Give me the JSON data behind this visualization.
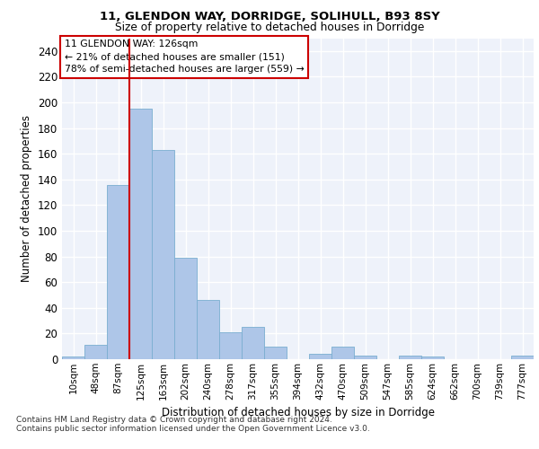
{
  "title1": "11, GLENDON WAY, DORRIDGE, SOLIHULL, B93 8SY",
  "title2": "Size of property relative to detached houses in Dorridge",
  "xlabel": "Distribution of detached houses by size in Dorridge",
  "ylabel": "Number of detached properties",
  "bar_labels": [
    "10sqm",
    "48sqm",
    "87sqm",
    "125sqm",
    "163sqm",
    "202sqm",
    "240sqm",
    "278sqm",
    "317sqm",
    "355sqm",
    "394sqm",
    "432sqm",
    "470sqm",
    "509sqm",
    "547sqm",
    "585sqm",
    "624sqm",
    "662sqm",
    "700sqm",
    "739sqm",
    "777sqm"
  ],
  "bar_values": [
    2,
    11,
    136,
    195,
    163,
    79,
    46,
    21,
    25,
    10,
    0,
    4,
    10,
    3,
    0,
    3,
    2,
    0,
    0,
    0,
    3
  ],
  "bar_color": "#aec6e8",
  "bar_edgecolor": "#7aaed0",
  "vline_color": "#cc0000",
  "box_edgecolor": "#cc0000",
  "annotation_line1": "11 GLENDON WAY: 126sqm",
  "annotation_line2": "← 21% of detached houses are smaller (151)",
  "annotation_line3": "78% of semi-detached houses are larger (559) →",
  "footer1": "Contains HM Land Registry data © Crown copyright and database right 2024.",
  "footer2": "Contains public sector information licensed under the Open Government Licence v3.0.",
  "ylim": [
    0,
    250
  ],
  "yticks": [
    0,
    20,
    40,
    60,
    80,
    100,
    120,
    140,
    160,
    180,
    200,
    220,
    240
  ],
  "bg_color": "#eef2fa",
  "grid_color": "#ffffff",
  "vline_x": 2.5
}
